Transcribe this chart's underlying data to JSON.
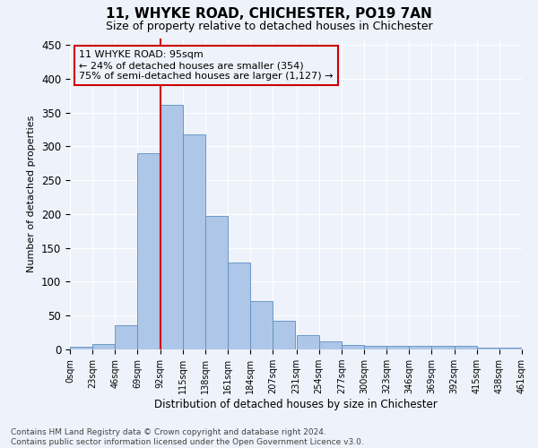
{
  "title": "11, WHYKE ROAD, CHICHESTER, PO19 7AN",
  "subtitle": "Size of property relative to detached houses in Chichester",
  "xlabel": "Distribution of detached houses by size in Chichester",
  "ylabel": "Number of detached properties",
  "footnote1": "Contains HM Land Registry data © Crown copyright and database right 2024.",
  "footnote2": "Contains public sector information licensed under the Open Government Licence v3.0.",
  "bin_edges": [
    0,
    23,
    46,
    69,
    92,
    115,
    138,
    161,
    184,
    207,
    231,
    254,
    277,
    300,
    323,
    346,
    369,
    392,
    415,
    438,
    461
  ],
  "bar_heights": [
    4,
    8,
    36,
    290,
    362,
    318,
    197,
    128,
    71,
    42,
    21,
    12,
    7,
    5,
    5,
    5,
    5,
    5,
    3,
    2
  ],
  "bar_color": "#aec6e8",
  "bar_edge_color": "#5a8fc0",
  "property_bin_index": 4,
  "vline_color": "#cc0000",
  "annotation_text": "11 WHYKE ROAD: 95sqm\n← 24% of detached houses are smaller (354)\n75% of semi-detached houses are larger (1,127) →",
  "annotation_box_color": "#cc0000",
  "ylim": [
    0,
    460
  ],
  "yticks": [
    0,
    50,
    100,
    150,
    200,
    250,
    300,
    350,
    400,
    450
  ],
  "tick_labels": [
    "0sqm",
    "23sqm",
    "46sqm",
    "69sqm",
    "92sqm",
    "115sqm",
    "138sqm",
    "161sqm",
    "184sqm",
    "207sqm",
    "231sqm",
    "254sqm",
    "277sqm",
    "300sqm",
    "323sqm",
    "346sqm",
    "369sqm",
    "392sqm",
    "415sqm",
    "438sqm",
    "461sqm"
  ],
  "background_color": "#eef2fa",
  "grid_color": "#ffffff",
  "title_fontsize": 11,
  "subtitle_fontsize": 9,
  "ylabel_fontsize": 8,
  "xlabel_fontsize": 8.5,
  "xtick_fontsize": 7,
  "ytick_fontsize": 8.5,
  "annot_fontsize": 8,
  "footnote_fontsize": 6.5
}
